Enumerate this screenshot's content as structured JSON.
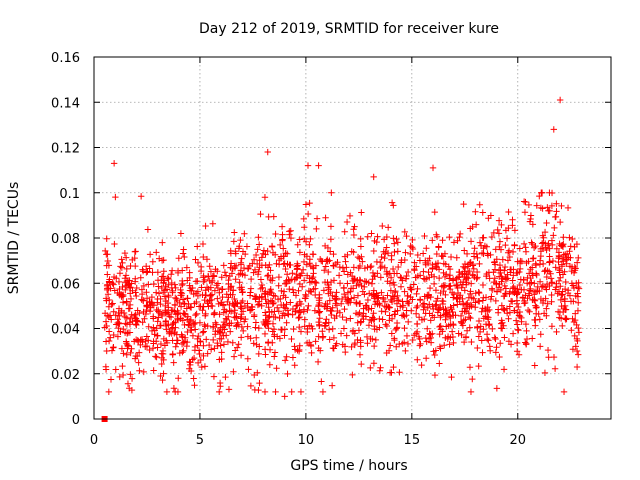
{
  "chart_data": {
    "type": "scatter",
    "title": "Day 212 of 2019, SRMTID for receiver kure",
    "xlabel": "GPS time / hours",
    "ylabel": "SRMTID / TECUs",
    "xlim": [
      0,
      24.4
    ],
    "ylim": [
      0,
      0.16
    ],
    "xticks": [
      0,
      5,
      10,
      15,
      20
    ],
    "xtick_labels": [
      "0",
      "5",
      "10",
      "15",
      "20"
    ],
    "yticks": [
      0,
      0.02,
      0.04,
      0.06,
      0.08,
      0.1,
      0.12,
      0.14,
      0.16
    ],
    "ytick_labels": [
      "0",
      "0.02",
      "0.04",
      "0.06",
      "0.08",
      "0.1",
      "0.12",
      "0.14",
      "0.16"
    ],
    "grid": true,
    "marker": "plus",
    "color": "#ff0000",
    "x_range_of_data": [
      0.5,
      22.9
    ],
    "highlighted_points": [
      {
        "x": 0.5,
        "y": 0.0,
        "marker": "square"
      },
      {
        "x": 0.95,
        "y": 0.113
      },
      {
        "x": 8.2,
        "y": 0.118
      },
      {
        "x": 9.0,
        "y": 0.01
      },
      {
        "x": 10.1,
        "y": 0.112
      },
      {
        "x": 10.6,
        "y": 0.112
      },
      {
        "x": 13.2,
        "y": 0.107
      },
      {
        "x": 16.0,
        "y": 0.111
      },
      {
        "x": 21.7,
        "y": 0.128
      },
      {
        "x": 22.0,
        "y": 0.141
      },
      {
        "x": 22.8,
        "y": 0.023
      }
    ],
    "bulk_profile": [
      {
        "x": 0.5,
        "mean": 0.05,
        "spread": 0.02
      },
      {
        "x": 2.0,
        "mean": 0.048,
        "spread": 0.02
      },
      {
        "x": 4.0,
        "mean": 0.045,
        "spread": 0.019
      },
      {
        "x": 6.0,
        "mean": 0.048,
        "spread": 0.02
      },
      {
        "x": 8.0,
        "mean": 0.055,
        "spread": 0.02
      },
      {
        "x": 10.0,
        "mean": 0.055,
        "spread": 0.022
      },
      {
        "x": 12.0,
        "mean": 0.056,
        "spread": 0.02
      },
      {
        "x": 14.0,
        "mean": 0.055,
        "spread": 0.02
      },
      {
        "x": 16.0,
        "mean": 0.052,
        "spread": 0.02
      },
      {
        "x": 18.0,
        "mean": 0.057,
        "spread": 0.02
      },
      {
        "x": 20.0,
        "mean": 0.06,
        "spread": 0.02
      },
      {
        "x": 21.5,
        "mean": 0.065,
        "spread": 0.024
      },
      {
        "x": 22.9,
        "mean": 0.055,
        "spread": 0.02
      }
    ],
    "bulk_point_count": 2200
  }
}
